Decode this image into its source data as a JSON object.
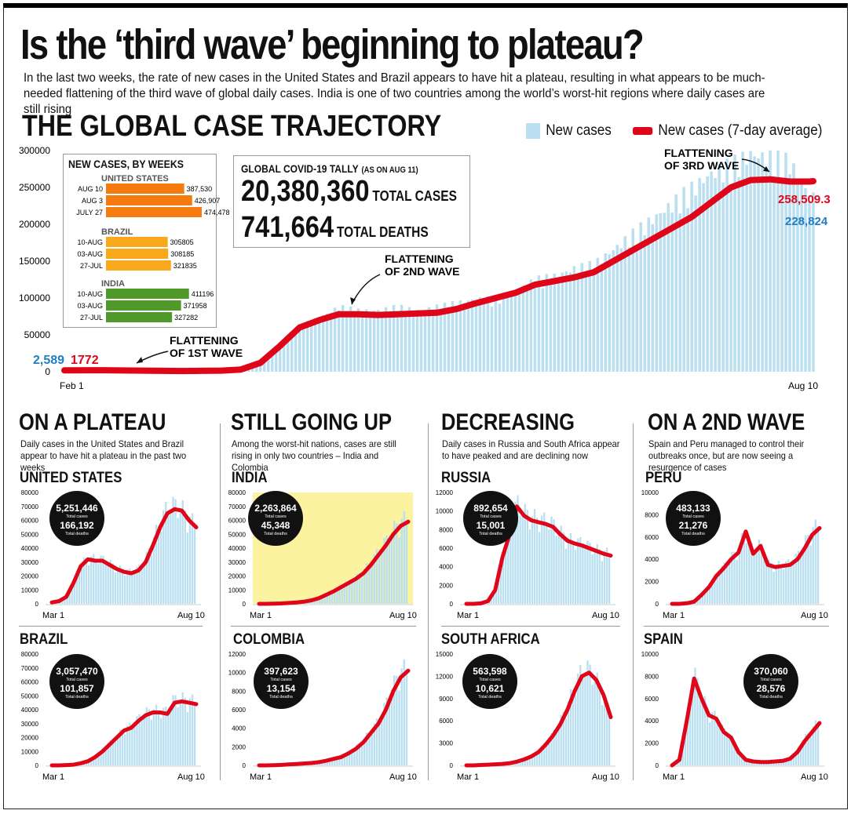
{
  "headline": "Is the ‘third wave’ beginning to plateau?",
  "standfirst": "In the last two weeks, the rate of new cases in the United States and Brazil appears to have hit a plateau, resulting in what appears to be much-needed flattening of the third wave of global daily cases. India  is one of two countries among the world’s worst-hit regions where daily cases are still rising",
  "section_title": "THE GLOBAL CASE TRAJECTORY",
  "legend": {
    "bars": "New cases",
    "line": "New cases (7-day average)"
  },
  "colors": {
    "bar": "#b9dff0",
    "line": "#e0061a",
    "blue_label": "#1f7fc2",
    "us_bars": "#f57b10",
    "brazil_bars": "#f7a81b",
    "india_bars": "#4f9a2b",
    "highlight": "#fbf3a0"
  },
  "weekly_box": {
    "title": "NEW CASES, BY WEEKS",
    "groups": [
      {
        "name": "UNITED STATES",
        "rows": [
          {
            "label": "AUG 10",
            "value": 387530,
            "text": "387,530"
          },
          {
            "label": "AUG 3",
            "value": 426907,
            "text": "426,907"
          },
          {
            "label": "JULY 27",
            "value": 474478,
            "text": "474,478"
          }
        ]
      },
      {
        "name": "BRAZIL",
        "rows": [
          {
            "label": "10-AUG",
            "value": 305805,
            "text": "305805"
          },
          {
            "label": "03-AUG",
            "value": 308185,
            "text": "308185"
          },
          {
            "label": "27-JUL",
            "value": 321835,
            "text": "321835"
          }
        ]
      },
      {
        "name": "INDIA",
        "rows": [
          {
            "label": "10-AUG",
            "value": 411196,
            "text": "411196"
          },
          {
            "label": "03-AUG",
            "value": 371958,
            "text": "371958"
          },
          {
            "label": "27-JUL",
            "value": 327282,
            "text": "327282"
          }
        ]
      }
    ]
  },
  "tally": {
    "title": "GLOBAL COVID-19 TALLY",
    "title_note": "(AS ON AUG 11)",
    "total_cases": "20,380,360",
    "total_cases_label": "TOTAL CASES",
    "total_deaths": "741,664",
    "total_deaths_label": "TOTAL DEATHS"
  },
  "annotations": {
    "wave1": [
      "FLATTENING",
      "OF 1ST WAVE"
    ],
    "wave2": [
      "FLATTENING",
      "OF 2ND WAVE"
    ],
    "wave3": [
      "FLATTENING",
      "OF 3RD WAVE"
    ],
    "start_bar": "2,589",
    "start_avg": "1772",
    "end_avg": "258,509.3",
    "end_bar": "228,824"
  },
  "chart_data": [
    {
      "type": "bar",
      "title": "THE GLOBAL CASE TRAJECTORY",
      "x_labels": [
        "Feb 1",
        "Aug 10"
      ],
      "ylim": [
        0,
        300000
      ],
      "yticks": [
        0,
        50000,
        100000,
        150000,
        200000,
        250000,
        300000
      ],
      "series": [
        {
          "name": "New cases",
          "kind": "bar",
          "x": [
            0,
            10,
            20,
            30,
            40,
            45,
            50,
            55,
            60,
            65,
            70,
            75,
            80,
            85,
            90,
            95,
            100,
            105,
            110,
            115,
            120,
            125,
            130,
            135,
            140,
            145,
            150,
            155,
            160,
            165,
            170,
            175,
            180,
            185,
            190,
            191
          ],
          "values": [
            2589,
            2600,
            2000,
            1500,
            1700,
            4000,
            15000,
            35000,
            60000,
            70000,
            85000,
            80000,
            80000,
            85000,
            80000,
            85000,
            90000,
            95000,
            95000,
            105000,
            120000,
            125000,
            135000,
            140000,
            160000,
            180000,
            200000,
            220000,
            240000,
            260000,
            270000,
            285000,
            280000,
            275000,
            230000,
            228824
          ]
        },
        {
          "name": "New cases (7-day average)",
          "kind": "line",
          "x": [
            0,
            10,
            20,
            30,
            40,
            45,
            50,
            55,
            60,
            65,
            70,
            75,
            80,
            85,
            90,
            95,
            100,
            105,
            110,
            115,
            120,
            125,
            130,
            135,
            140,
            145,
            150,
            155,
            160,
            165,
            170,
            175,
            180,
            185,
            190,
            191
          ],
          "values": [
            1772,
            2000,
            1500,
            1000,
            1500,
            3000,
            12000,
            35000,
            60000,
            70000,
            78000,
            78000,
            77000,
            78000,
            79000,
            80000,
            85000,
            93000,
            100000,
            107000,
            118000,
            123000,
            128000,
            135000,
            150000,
            165000,
            180000,
            195000,
            210000,
            230000,
            250000,
            260000,
            261000,
            258000,
            258000,
            258509.3
          ]
        }
      ]
    },
    {
      "type": "bar",
      "title": "UNITED STATES",
      "x_labels": [
        "Mar 1",
        "Aug 10"
      ],
      "ylim": [
        0,
        80000
      ],
      "yticks": [
        0,
        10000,
        20000,
        30000,
        40000,
        50000,
        60000,
        70000,
        80000
      ],
      "values": [
        1000,
        2000,
        5000,
        15000,
        27000,
        32000,
        31000,
        31000,
        28000,
        25000,
        23000,
        22000,
        24000,
        30000,
        42000,
        55000,
        65000,
        68000,
        67000,
        60000,
        55000
      ],
      "total_cases": "5,251,446",
      "total_deaths": "166,192",
      "cases_label": "Total cases",
      "deaths_label": "Total deaths"
    },
    {
      "type": "bar",
      "title": "BRAZIL",
      "x_labels": [
        "Mar 1",
        "Aug 10"
      ],
      "ylim": [
        0,
        80000
      ],
      "yticks": [
        0,
        10000,
        20000,
        30000,
        40000,
        50000,
        60000,
        70000,
        80000
      ],
      "values": [
        0,
        0,
        200,
        500,
        1500,
        3000,
        6000,
        10000,
        15000,
        20000,
        25000,
        27000,
        32000,
        36000,
        38000,
        38000,
        37000,
        45000,
        46000,
        45000,
        44000
      ],
      "total_cases": "3,057,470",
      "total_deaths": "101,857",
      "cases_label": "Total cases",
      "deaths_label": "Total deaths"
    },
    {
      "type": "bar",
      "title": "INDIA",
      "highlight": true,
      "x_labels": [
        "Mar 1",
        "Aug 10"
      ],
      "ylim": [
        0,
        80000
      ],
      "yticks": [
        0,
        10000,
        20000,
        30000,
        40000,
        50000,
        60000,
        70000,
        80000
      ],
      "values": [
        0,
        0,
        100,
        300,
        600,
        1000,
        1500,
        2500,
        4000,
        6500,
        9000,
        12000,
        15000,
        18000,
        22000,
        28000,
        35000,
        42000,
        50000,
        56000,
        59000
      ],
      "total_cases": "2,263,864",
      "total_deaths": "45,348",
      "cases_label": "Total cases",
      "deaths_label": "Total deaths"
    },
    {
      "type": "bar",
      "title": "COLOMBIA",
      "x_labels": [
        "Mar 1",
        "Aug 10"
      ],
      "ylim": [
        0,
        12000
      ],
      "yticks": [
        0,
        2000,
        4000,
        6000,
        8000,
        10000,
        12000
      ],
      "values": [
        0,
        0,
        20,
        50,
        100,
        150,
        200,
        250,
        350,
        500,
        700,
        900,
        1300,
        1800,
        2500,
        3500,
        4500,
        6000,
        8000,
        9500,
        10200
      ],
      "total_cases": "397,623",
      "total_deaths": "13,154",
      "cases_label": "Total cases",
      "deaths_label": "Total deaths"
    },
    {
      "type": "bar",
      "title": "RUSSIA",
      "x_labels": [
        "Mar 1",
        "Aug 10"
      ],
      "ylim": [
        0,
        12000
      ],
      "yticks": [
        0,
        2000,
        4000,
        6000,
        8000,
        10000,
        12000
      ],
      "values": [
        0,
        0,
        50,
        300,
        1500,
        5000,
        7500,
        10500,
        9500,
        9000,
        8800,
        8600,
        8300,
        7500,
        6800,
        6500,
        6300,
        6000,
        5700,
        5400,
        5200
      ],
      "total_cases": "892,654",
      "total_deaths": "15,001",
      "cases_label": "Total cases",
      "deaths_label": "Total deaths"
    },
    {
      "type": "bar",
      "title": "SOUTH AFRICA",
      "x_labels": [
        "Mar 1",
        "Aug 10"
      ],
      "ylim": [
        0,
        15000
      ],
      "yticks": [
        0,
        3000,
        6000,
        9000,
        12000,
        15000
      ],
      "values": [
        0,
        0,
        50,
        100,
        150,
        200,
        300,
        500,
        800,
        1200,
        1800,
        2800,
        4000,
        5500,
        7500,
        10000,
        12000,
        12500,
        11500,
        9500,
        6500
      ],
      "total_cases": "563,598",
      "total_deaths": "10,621",
      "cases_label": "Total cases",
      "deaths_label": "Total deaths"
    },
    {
      "type": "bar",
      "title": "PERU",
      "x_labels": [
        "Mar 1",
        "Aug 10"
      ],
      "ylim": [
        0,
        10000
      ],
      "yticks": [
        0,
        2000,
        4000,
        6000,
        8000,
        10000
      ],
      "values": [
        0,
        0,
        50,
        200,
        800,
        1500,
        2500,
        3200,
        4000,
        4600,
        6500,
        4500,
        5200,
        3500,
        3300,
        3400,
        3500,
        4000,
        5000,
        6200,
        6800
      ],
      "total_cases": "483,133",
      "total_deaths": "21,276",
      "cases_label": "Total cases",
      "deaths_label": "Total deaths"
    },
    {
      "type": "bar",
      "title": "SPAIN",
      "x_labels": [
        "Mar 1",
        "Aug 10"
      ],
      "ylim": [
        0,
        10000
      ],
      "yticks": [
        0,
        2000,
        4000,
        6000,
        8000,
        10000
      ],
      "values": [
        0,
        500,
        4000,
        7800,
        6000,
        4500,
        4200,
        3000,
        2500,
        1200,
        500,
        350,
        300,
        300,
        350,
        400,
        600,
        1200,
        2200,
        3000,
        3800
      ],
      "total_cases": "370,060",
      "total_deaths": "28,576",
      "cases_label": "Total cases",
      "deaths_label": "Total deaths"
    }
  ],
  "panels": [
    {
      "title": "ON A PLATEAU",
      "desc": "Daily cases in the United States and Brazil appear to have hit a plateau in the past two weeks"
    },
    {
      "title": "STILL GOING UP",
      "desc": "Among the worst-hit nations, cases are still rising in only two countries – India and Colombia"
    },
    {
      "title": "DECREASING",
      "desc": "Daily cases in Russia and South Africa appear to have peaked and are declining now"
    },
    {
      "title": "ON A 2ND WAVE",
      "desc": "Spain and Peru managed to control their outbreaks once, but are now seeing a resurgence of cases"
    }
  ]
}
